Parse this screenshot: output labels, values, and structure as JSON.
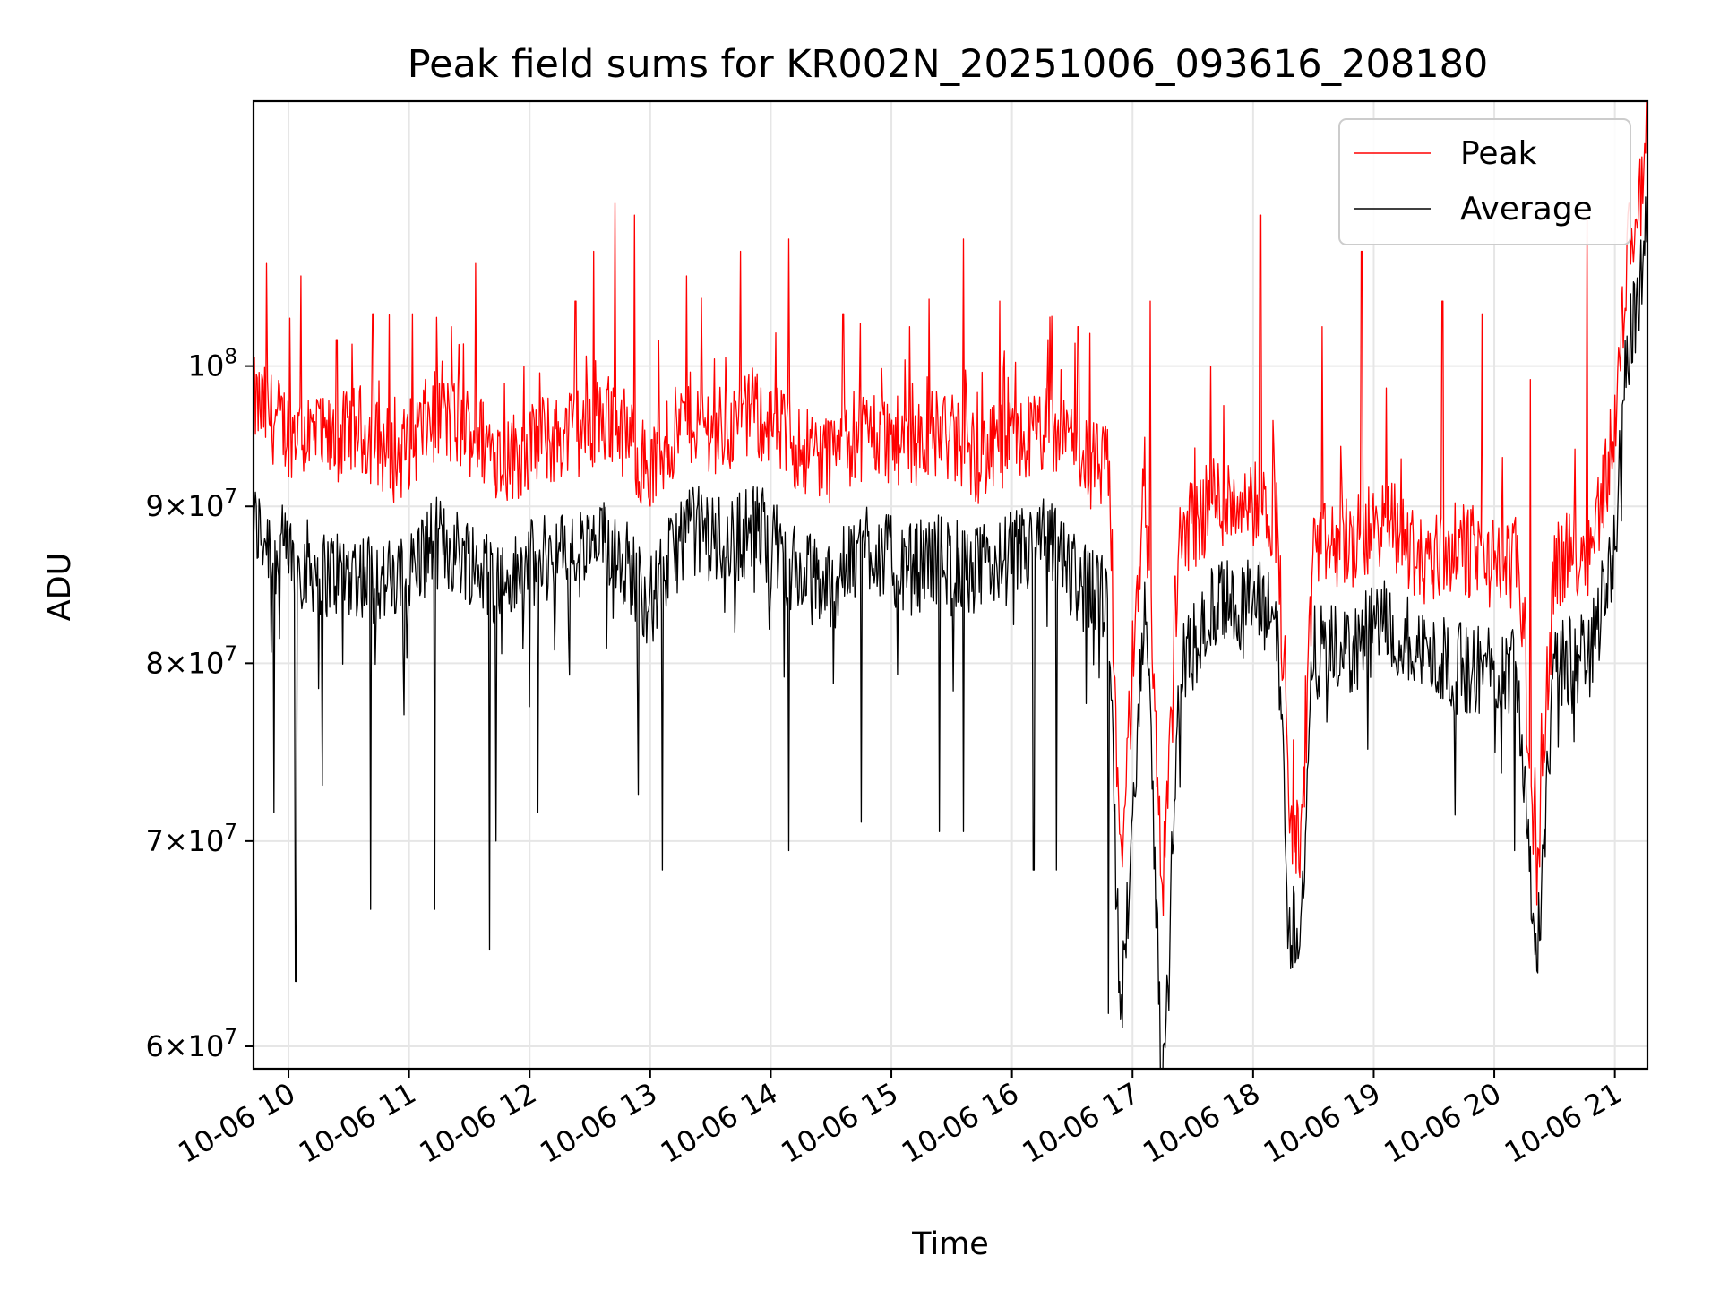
{
  "chart_data": {
    "type": "line",
    "title": "Peak field sums for KR002N_20251006_093616_208180",
    "xlabel": "Time",
    "ylabel": "ADU",
    "yscale": "log",
    "ylim": [
      59000000,
      122000000
    ],
    "xlim": [
      9.71,
      21.27
    ],
    "grid": true,
    "legend_position": "upper right",
    "x_ticks": [
      {
        "value": 10,
        "label": "10-06 10"
      },
      {
        "value": 11,
        "label": "10-06 11"
      },
      {
        "value": 12,
        "label": "10-06 12"
      },
      {
        "value": 13,
        "label": "10-06 13"
      },
      {
        "value": 14,
        "label": "10-06 14"
      },
      {
        "value": 15,
        "label": "10-06 15"
      },
      {
        "value": 16,
        "label": "10-06 16"
      },
      {
        "value": 17,
        "label": "10-06 17"
      },
      {
        "value": 18,
        "label": "10-06 18"
      },
      {
        "value": 19,
        "label": "10-06 19"
      },
      {
        "value": 20,
        "label": "10-06 20"
      },
      {
        "value": 21,
        "label": "10-06 21"
      }
    ],
    "y_ticks": [
      {
        "value": 60000000,
        "base": "6",
        "exp": "7"
      },
      {
        "value": 70000000,
        "base": "7",
        "exp": "7"
      },
      {
        "value": 80000000,
        "base": "8",
        "exp": "7"
      },
      {
        "value": 90000000,
        "base": "9",
        "exp": "7"
      },
      {
        "value": 100000000,
        "base": "",
        "exp": "8"
      }
    ],
    "series": [
      {
        "name": "Peak",
        "color": "#ff0000",
        "x": [
          9.71,
          10.0,
          10.3,
          10.6,
          10.9,
          11.2,
          11.5,
          11.8,
          12.1,
          12.4,
          12.7,
          13.0,
          13.3,
          13.6,
          13.9,
          14.2,
          14.5,
          14.8,
          15.1,
          15.4,
          15.7,
          16.0,
          16.3,
          16.6,
          16.8,
          16.9,
          17.1,
          17.25,
          17.4,
          17.7,
          18.0,
          18.2,
          18.3,
          18.4,
          18.5,
          18.8,
          19.1,
          19.4,
          19.7,
          20.0,
          20.2,
          20.35,
          20.5,
          20.8,
          21.0,
          21.1,
          21.2,
          21.27
        ],
        "values": [
          97000000,
          95000000,
          94000000,
          95000000,
          93000000,
          96000000,
          95000000,
          93000000,
          94000000,
          95000000,
          96000000,
          92000000,
          96000000,
          95000000,
          96000000,
          94000000,
          93000000,
          95000000,
          94000000,
          95000000,
          93000000,
          94000000,
          95000000,
          93000000,
          92000000,
          68000000,
          92000000,
          67000000,
          88000000,
          90000000,
          90000000,
          89000000,
          71000000,
          69000000,
          87000000,
          87000000,
          89000000,
          86000000,
          87000000,
          86000000,
          86000000,
          68000000,
          86000000,
          87000000,
          95000000,
          108000000,
          112000000,
          119000000
        ],
        "spikes": [
          {
            "x": 9.82,
            "value": 108000000
          },
          {
            "x": 10.1,
            "value": 107000000
          },
          {
            "x": 10.4,
            "value": 102000000
          },
          {
            "x": 10.7,
            "value": 104000000
          },
          {
            "x": 11.03,
            "value": 104000000
          },
          {
            "x": 11.35,
            "value": 103000000
          },
          {
            "x": 11.55,
            "value": 108000000
          },
          {
            "x": 11.95,
            "value": 100000000
          },
          {
            "x": 12.38,
            "value": 105000000
          },
          {
            "x": 12.53,
            "value": 109000000
          },
          {
            "x": 12.71,
            "value": 113000000
          },
          {
            "x": 12.87,
            "value": 112000000
          },
          {
            "x": 13.3,
            "value": 107000000
          },
          {
            "x": 13.75,
            "value": 109000000
          },
          {
            "x": 14.15,
            "value": 110000000
          },
          {
            "x": 14.6,
            "value": 104000000
          },
          {
            "x": 15.15,
            "value": 103000000
          },
          {
            "x": 15.6,
            "value": 110000000
          },
          {
            "x": 15.9,
            "value": 105000000
          },
          {
            "x": 16.3,
            "value": 102000000
          },
          {
            "x": 16.55,
            "value": 103000000
          },
          {
            "x": 17.15,
            "value": 105000000
          },
          {
            "x": 17.65,
            "value": 100000000
          },
          {
            "x": 18.06,
            "value": 112000000
          },
          {
            "x": 18.57,
            "value": 103000000
          },
          {
            "x": 18.9,
            "value": 109000000
          },
          {
            "x": 19.57,
            "value": 105000000
          },
          {
            "x": 19.9,
            "value": 104000000
          },
          {
            "x": 20.3,
            "value": 99000000
          },
          {
            "x": 20.77,
            "value": 112000000
          },
          {
            "x": 21.12,
            "value": 113000000
          }
        ]
      },
      {
        "name": "Average",
        "color": "#000000",
        "x": [
          9.71,
          10.0,
          10.3,
          10.6,
          10.9,
          11.2,
          11.5,
          11.8,
          12.1,
          12.4,
          12.7,
          13.0,
          13.3,
          13.6,
          13.9,
          14.2,
          14.5,
          14.8,
          15.1,
          15.4,
          15.7,
          16.0,
          16.3,
          16.6,
          16.8,
          16.9,
          17.1,
          17.25,
          17.4,
          17.7,
          18.0,
          18.2,
          18.3,
          18.4,
          18.5,
          18.8,
          19.1,
          19.4,
          19.7,
          20.0,
          20.2,
          20.35,
          20.5,
          20.8,
          21.0,
          21.1,
          21.2,
          21.27
        ],
        "values": [
          89000000,
          87000000,
          86000000,
          86000000,
          85000000,
          88000000,
          87000000,
          85000000,
          87000000,
          87000000,
          88000000,
          84000000,
          89000000,
          88000000,
          89000000,
          86000000,
          85000000,
          88000000,
          86000000,
          87000000,
          86000000,
          87000000,
          88000000,
          85000000,
          84000000,
          61000000,
          85000000,
          59000000,
          80000000,
          84000000,
          84000000,
          83000000,
          66000000,
          66000000,
          81000000,
          81000000,
          83000000,
          81000000,
          80000000,
          80000000,
          80000000,
          64000000,
          80000000,
          81000000,
          88000000,
          101000000,
          106000000,
          113000000
        ],
        "dips": [
          {
            "x": 10.06,
            "value": 63000000
          },
          {
            "x": 9.88,
            "value": 71500000
          },
          {
            "x": 10.28,
            "value": 73000000
          },
          {
            "x": 10.68,
            "value": 66500000
          },
          {
            "x": 11.21,
            "value": 66500000
          },
          {
            "x": 11.67,
            "value": 64500000
          },
          {
            "x": 11.72,
            "value": 70000000
          },
          {
            "x": 12.07,
            "value": 71500000
          },
          {
            "x": 12.9,
            "value": 72500000
          },
          {
            "x": 13.1,
            "value": 68500000
          },
          {
            "x": 14.15,
            "value": 69500000
          },
          {
            "x": 14.75,
            "value": 71000000
          },
          {
            "x": 15.4,
            "value": 70500000
          },
          {
            "x": 15.6,
            "value": 70500000
          },
          {
            "x": 16.18,
            "value": 68500000
          },
          {
            "x": 16.37,
            "value": 68500000
          },
          {
            "x": 16.8,
            "value": 61500000
          },
          {
            "x": 17.23,
            "value": 58500000
          },
          {
            "x": 18.95,
            "value": 75000000
          },
          {
            "x": 20.17,
            "value": 69500000
          },
          {
            "x": 20.35,
            "value": 63500000
          }
        ]
      }
    ],
    "legend": [
      {
        "label": "Peak",
        "color": "#ff0000"
      },
      {
        "label": "Average",
        "color": "#000000"
      }
    ]
  }
}
